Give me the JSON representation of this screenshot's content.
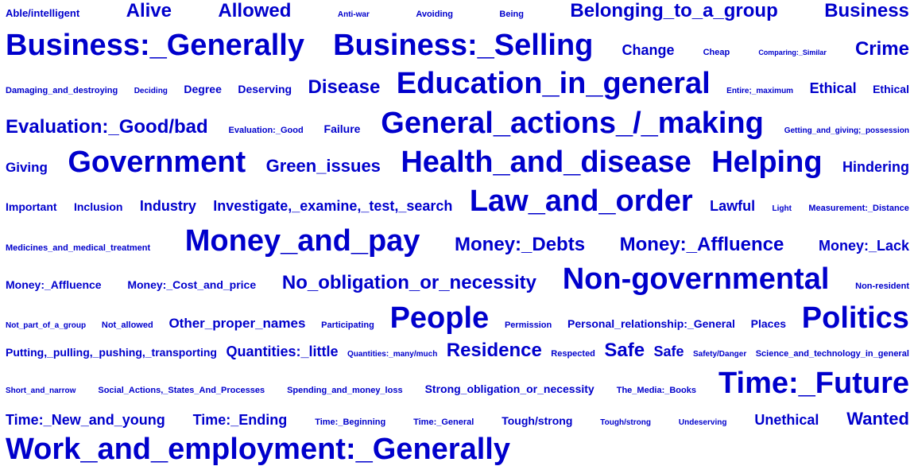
{
  "cloud": {
    "color": "#0000cc",
    "rows": [
      {
        "terms": [
          {
            "text": "Able/intelligent",
            "size": 13
          },
          {
            "text": "Alive",
            "size": 24
          },
          {
            "text": "Allowed",
            "size": 24
          },
          {
            "text": "Anti-war",
            "size": 10
          },
          {
            "text": "Avoiding",
            "size": 11
          },
          {
            "text": "Being",
            "size": 11
          },
          {
            "text": "Belonging_to_a_group",
            "size": 24
          },
          {
            "text": "Business",
            "size": 24
          }
        ]
      },
      {
        "terms": [
          {
            "text": "Business:_Generally",
            "size": 38
          },
          {
            "text": "Business:_Selling",
            "size": 38
          },
          {
            "text": "Change",
            "size": 18
          },
          {
            "text": "Cheap",
            "size": 11
          },
          {
            "text": "Comparing:_Similar",
            "size": 9
          },
          {
            "text": "Crime",
            "size": 24
          }
        ]
      },
      {
        "terms": [
          {
            "text": "Damaging_and_destroying",
            "size": 11
          },
          {
            "text": "Deciding",
            "size": 10
          },
          {
            "text": "Degree",
            "size": 14
          },
          {
            "text": "Deserving",
            "size": 14
          },
          {
            "text": "Disease",
            "size": 24
          },
          {
            "text": "Education_in_general",
            "size": 38
          },
          {
            "text": "Entire;_maximum",
            "size": 10
          },
          {
            "text": "Ethical",
            "size": 18
          },
          {
            "text": "Ethical",
            "size": 14
          }
        ]
      },
      {
        "terms": [
          {
            "text": "Evaluation:_Good/bad",
            "size": 24
          },
          {
            "text": "Evaluation:_Good",
            "size": 11
          },
          {
            "text": "Failure",
            "size": 14
          },
          {
            "text": "General_actions_/_making",
            "size": 38
          },
          {
            "text": "Getting_and_giving;_possession",
            "size": 10
          }
        ]
      },
      {
        "terms": [
          {
            "text": "Giving",
            "size": 17
          },
          {
            "text": "Government",
            "size": 38
          },
          {
            "text": "Green_issues",
            "size": 22
          },
          {
            "text": "Health_and_disease",
            "size": 38
          },
          {
            "text": "Helping",
            "size": 38
          },
          {
            "text": "Hindering",
            "size": 18
          }
        ]
      },
      {
        "terms": [
          {
            "text": "Important",
            "size": 14
          },
          {
            "text": "Inclusion",
            "size": 14
          },
          {
            "text": "Industry",
            "size": 18
          },
          {
            "text": "Investigate,_examine,_test,_search",
            "size": 18
          },
          {
            "text": "Law_and_order",
            "size": 38
          },
          {
            "text": "Lawful",
            "size": 18
          },
          {
            "text": "Light",
            "size": 10
          },
          {
            "text": "Measurement:_Distance",
            "size": 11
          }
        ]
      },
      {
        "terms": [
          {
            "text": "Medicines_and_medical_treatment",
            "size": 11
          },
          {
            "text": "Money_and_pay",
            "size": 38
          },
          {
            "text": "Money:_Debts",
            "size": 24
          },
          {
            "text": "Money:_Affluence",
            "size": 24
          },
          {
            "text": "Money:_Lack",
            "size": 18
          }
        ]
      },
      {
        "terms": [
          {
            "text": "Money:_Affluence",
            "size": 14
          },
          {
            "text": "Money:_Cost_and_price",
            "size": 14
          },
          {
            "text": "No_obligation_or_necessity",
            "size": 24
          },
          {
            "text": "Non-governmental",
            "size": 38
          },
          {
            "text": "Non-resident",
            "size": 11
          }
        ]
      },
      {
        "terms": [
          {
            "text": "Not_part_of_a_group",
            "size": 10
          },
          {
            "text": "Not_allowed",
            "size": 11
          },
          {
            "text": "Other_proper_names",
            "size": 17
          },
          {
            "text": "Participating",
            "size": 11
          },
          {
            "text": "People",
            "size": 38
          },
          {
            "text": "Permission",
            "size": 11
          },
          {
            "text": "Personal_relationship:_General",
            "size": 14
          },
          {
            "text": "Places",
            "size": 14
          },
          {
            "text": "Politics",
            "size": 38
          }
        ]
      },
      {
        "terms": [
          {
            "text": "Putting,_pulling,_pushing,_transporting",
            "size": 14
          },
          {
            "text": "Quantities:_little",
            "size": 18
          },
          {
            "text": "Quantities:_many/much",
            "size": 10
          },
          {
            "text": "Residence",
            "size": 24
          },
          {
            "text": "Respected",
            "size": 11
          },
          {
            "text": "Safe",
            "size": 24
          },
          {
            "text": "Safe",
            "size": 18
          },
          {
            "text": "Safety/Danger",
            "size": 10
          },
          {
            "text": "Science_and_technology_in_general",
            "size": 11
          }
        ]
      },
      {
        "terms": [
          {
            "text": "Short_and_narrow",
            "size": 10
          },
          {
            "text": "Social_Actions,_States_And_Processes",
            "size": 11
          },
          {
            "text": "Spending_and_money_loss",
            "size": 11
          },
          {
            "text": "Strong_obligation_or_necessity",
            "size": 14
          },
          {
            "text": "The_Media:_Books",
            "size": 11
          },
          {
            "text": "Time:_Future",
            "size": 38
          }
        ]
      },
      {
        "terms": [
          {
            "text": "Time:_New_and_young",
            "size": 18
          },
          {
            "text": "Time:_Ending",
            "size": 18
          },
          {
            "text": "Time:_Beginning",
            "size": 11
          },
          {
            "text": "Time:_General",
            "size": 11
          },
          {
            "text": "Tough/strong",
            "size": 14
          },
          {
            "text": "Tough/strong",
            "size": 10
          },
          {
            "text": "Undeserving",
            "size": 10
          },
          {
            "text": "Unethical",
            "size": 18
          },
          {
            "text": "Wanted",
            "size": 22
          }
        ]
      },
      {
        "terms": [
          {
            "text": "Work_and_employment:_Generally",
            "size": 38
          }
        ]
      }
    ]
  }
}
